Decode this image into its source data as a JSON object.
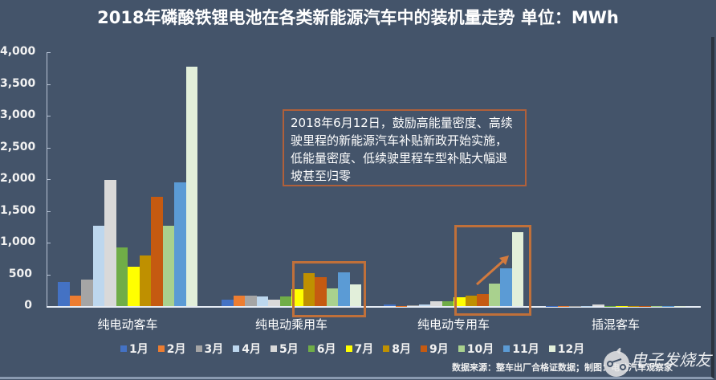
{
  "title": "2018年磷酸铁锂电池在各类新能源汽车中的装机量走势 单位：MWh",
  "annotation": "2018年6月12日，鼓励高能量密度、高续驶里程的新能源汽车补贴新政开始实施，低能量密度、低续驶里程车型补贴大幅退坡甚至归零",
  "source": "数据来源：整车出厂合格证数据；制图：电动汽车观察家",
  "watermark": "电子发烧友",
  "y_ticks": [
    "4,000",
    "3,500",
    "3,000",
    "2,500",
    "2,000",
    "1,500",
    "1,000",
    "500",
    "0"
  ],
  "colors": [
    "#4472c4",
    "#ed7d31",
    "#a5a5a5",
    "#bdd7ee",
    "#d9d9d9",
    "#70ad47",
    "#ffff00",
    "#bf9000",
    "#c55a11",
    "#a9d18e",
    "#5b9bd5",
    "#e2efda"
  ],
  "chart_data": {
    "type": "bar",
    "title": "2018年磷酸铁锂电池在各类新能源汽车中的装机量走势 单位：MWh",
    "xlabel": "",
    "ylabel": "MWh",
    "ylim": [
      0,
      4000
    ],
    "grid": false,
    "legend_position": "bottom",
    "categories": [
      "纯电动客车",
      "纯电动乘用车",
      "纯电动专用车",
      "插混客车"
    ],
    "series": [
      {
        "name": "1月",
        "values": [
          380,
          100,
          20,
          5
        ]
      },
      {
        "name": "2月",
        "values": [
          170,
          160,
          5,
          3
        ]
      },
      {
        "name": "3月",
        "values": [
          420,
          160,
          10,
          3
        ]
      },
      {
        "name": "4月",
        "values": [
          1270,
          150,
          20,
          5
        ]
      },
      {
        "name": "5月",
        "values": [
          1990,
          100,
          70,
          30
        ]
      },
      {
        "name": "6月",
        "values": [
          920,
          150,
          70,
          5
        ]
      },
      {
        "name": "7月",
        "values": [
          620,
          270,
          140,
          3
        ]
      },
      {
        "name": "8月",
        "values": [
          800,
          520,
          160,
          3
        ]
      },
      {
        "name": "9月",
        "values": [
          1720,
          450,
          190,
          3
        ]
      },
      {
        "name": "10月",
        "values": [
          1260,
          280,
          350,
          3
        ]
      },
      {
        "name": "11月",
        "values": [
          1950,
          530,
          600,
          3
        ]
      },
      {
        "name": "12月",
        "values": [
          3770,
          340,
          1160,
          5
        ]
      }
    ],
    "annotations": [
      "2018年6月12日，鼓励高能量密度、高续驶里程的新能源汽车补贴新政开始实施，低能量密度、低续驶里程车型补贴大幅退坡甚至归零"
    ]
  }
}
